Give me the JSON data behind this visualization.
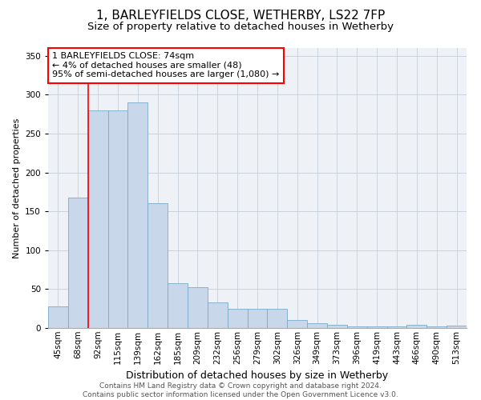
{
  "title1": "1, BARLEYFIELDS CLOSE, WETHERBY, LS22 7FP",
  "title2": "Size of property relative to detached houses in Wetherby",
  "xlabel": "Distribution of detached houses by size in Wetherby",
  "ylabel": "Number of detached properties",
  "categories": [
    "45sqm",
    "68sqm",
    "92sqm",
    "115sqm",
    "139sqm",
    "162sqm",
    "185sqm",
    "209sqm",
    "232sqm",
    "256sqm",
    "279sqm",
    "302sqm",
    "326sqm",
    "349sqm",
    "373sqm",
    "396sqm",
    "419sqm",
    "443sqm",
    "466sqm",
    "490sqm",
    "513sqm"
  ],
  "values": [
    28,
    168,
    280,
    280,
    290,
    160,
    58,
    52,
    33,
    25,
    25,
    25,
    10,
    6,
    4,
    2,
    2,
    2,
    4,
    2,
    3
  ],
  "bar_color": "#c8d8ea",
  "bar_edge_color": "#7aaac8",
  "red_line_x": 1.5,
  "annotation_line1": "1 BARLEYFIELDS CLOSE: 74sqm",
  "annotation_line2": "← 4% of detached houses are smaller (48)",
  "annotation_line3": "95% of semi-detached houses are larger (1,080) →",
  "ylim": [
    0,
    360
  ],
  "yticks": [
    0,
    50,
    100,
    150,
    200,
    250,
    300,
    350
  ],
  "grid_color": "#c5cfd8",
  "background_color": "#eef2f6",
  "footer_line1": "Contains HM Land Registry data © Crown copyright and database right 2024.",
  "footer_line2": "Contains public sector information licensed under the Open Government Licence v3.0.",
  "title1_fontsize": 11,
  "title2_fontsize": 9.5,
  "xlabel_fontsize": 9,
  "ylabel_fontsize": 8,
  "tick_fontsize": 7.5,
  "annotation_fontsize": 8,
  "footer_fontsize": 6.5
}
